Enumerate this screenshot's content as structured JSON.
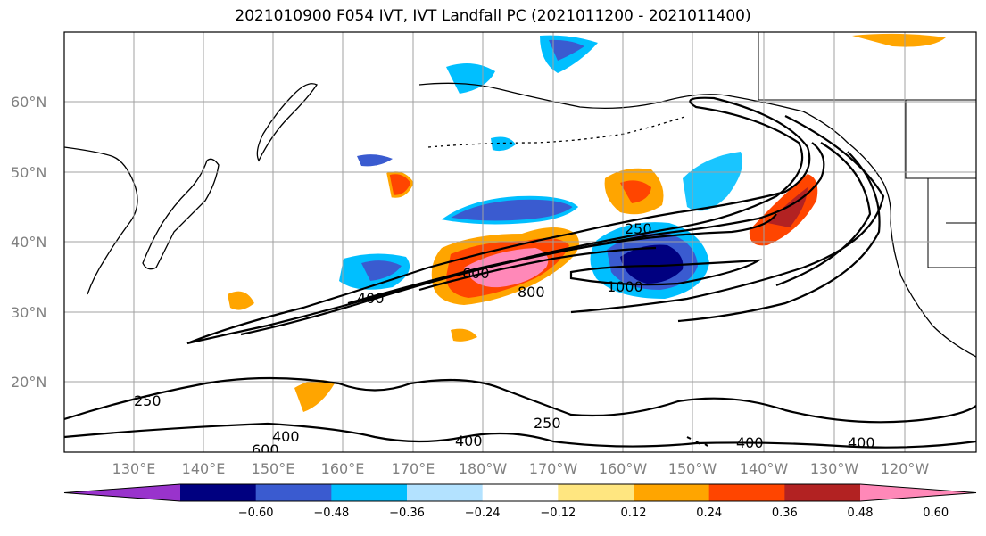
{
  "title": "2021010900 F054 IVT, IVT Landfall PC (2021011200 - 2021011400)",
  "lat_labels": [
    "60°N",
    "50°N",
    "40°N",
    "30°N",
    "20°N"
  ],
  "lon_labels": [
    "130°E",
    "140°E",
    "150°E",
    "160°E",
    "170°E",
    "180°W",
    "170°W",
    "160°W",
    "150°W",
    "140°W",
    "130°W",
    "120°W"
  ],
  "colorbar": {
    "colors": [
      "#9933cc",
      "#000080",
      "#3a5bd0",
      "#00bfff",
      "#b3e2ff",
      "#ffffff",
      "#ffe680",
      "#ffa500",
      "#ff4500",
      "#b22222",
      "#ff88b8"
    ],
    "tick_labels": [
      "−0.60",
      "−0.48",
      "−0.36",
      "−0.24",
      "−0.12",
      "0.12",
      "0.24",
      "0.36",
      "0.48",
      "0.60"
    ]
  },
  "contour_labels": [
    "250",
    "600",
    "800",
    "1000",
    "400",
    "250",
    "400",
    "600",
    "400",
    "250",
    "400",
    "400"
  ]
}
